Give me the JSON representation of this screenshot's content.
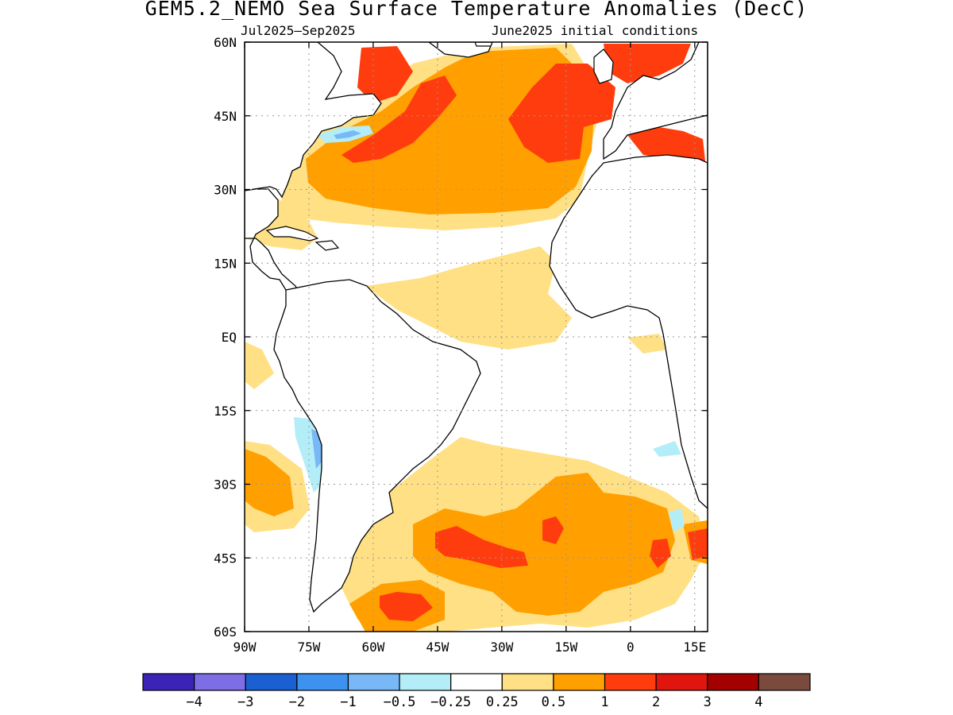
{
  "title": "GEM5.2_NEMO Sea Surface Temperature Anomalies (DecC)",
  "subtitle_left": "Jul2025–Sep2025",
  "subtitle_right": "June2025 initial conditions",
  "map": {
    "lat_ticks": [
      "60N",
      "45N",
      "30N",
      "15N",
      "EQ",
      "15S",
      "30S",
      "45S",
      "60S"
    ],
    "lon_ticks": [
      "90W",
      "75W",
      "60W",
      "45W",
      "30W",
      "15W",
      "0",
      "15E"
    ],
    "lon_range": [
      -90,
      18
    ],
    "lat_range": [
      -60,
      60
    ],
    "grid": "dotted",
    "land_fill": "#ffffff",
    "coastline_color": "#000000"
  },
  "colorbar": {
    "colors": [
      "#3b23b8",
      "#7d6ee6",
      "#1b60d3",
      "#3d92f0",
      "#78b8f6",
      "#b3eef8",
      "#ffffff",
      "#ffe084",
      "#ff9f00",
      "#ff3c0e",
      "#e0160e",
      "#a30000",
      "#7a4a3d"
    ],
    "labels": [
      "−4",
      "−3",
      "−2",
      "−1",
      "−0.5",
      "−0.25",
      "0.25",
      "0.5",
      "1",
      "2",
      "3",
      "4"
    ]
  }
}
